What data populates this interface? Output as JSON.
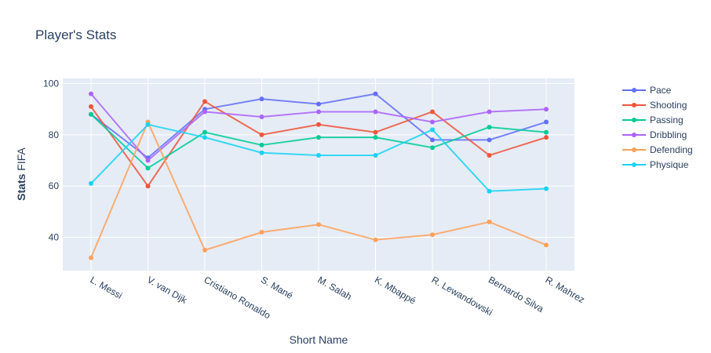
{
  "chart_data": {
    "type": "line",
    "title": "Player's Stats",
    "xlabel": "Short Name",
    "ylabel_bold": "Stats",
    "ylabel_rest": " FIFA",
    "categories": [
      "L. Messi",
      "V. van Dijk",
      "Cristiano Ronaldo",
      "S. Mané",
      "M. Salah",
      "K. Mbappé",
      "R. Lewandowski",
      "Bernardo Silva",
      "R. Mahrez"
    ],
    "ylim": [
      27,
      102
    ],
    "yticks": [
      40,
      60,
      80,
      100
    ],
    "grid": true,
    "legend_position": "right",
    "series": [
      {
        "name": "Pace",
        "color": "#636efa",
        "values": [
          88,
          71,
          90,
          94,
          92,
          96,
          78,
          78,
          85
        ]
      },
      {
        "name": "Shooting",
        "color": "#ef553b",
        "values": [
          91,
          60,
          93,
          80,
          84,
          81,
          89,
          72,
          79
        ]
      },
      {
        "name": "Passing",
        "color": "#00cc96",
        "values": [
          88,
          67,
          81,
          76,
          79,
          79,
          75,
          83,
          81
        ]
      },
      {
        "name": "Dribbling",
        "color": "#ab63fa",
        "values": [
          96,
          70,
          89,
          87,
          89,
          89,
          85,
          89,
          90
        ]
      },
      {
        "name": "Defending",
        "color": "#ffa15a",
        "values": [
          32,
          85,
          35,
          42,
          45,
          39,
          41,
          46,
          37
        ]
      },
      {
        "name": "Physique",
        "color": "#19d3f3",
        "values": [
          61,
          84,
          79,
          73,
          72,
          72,
          82,
          58,
          59
        ]
      }
    ]
  }
}
